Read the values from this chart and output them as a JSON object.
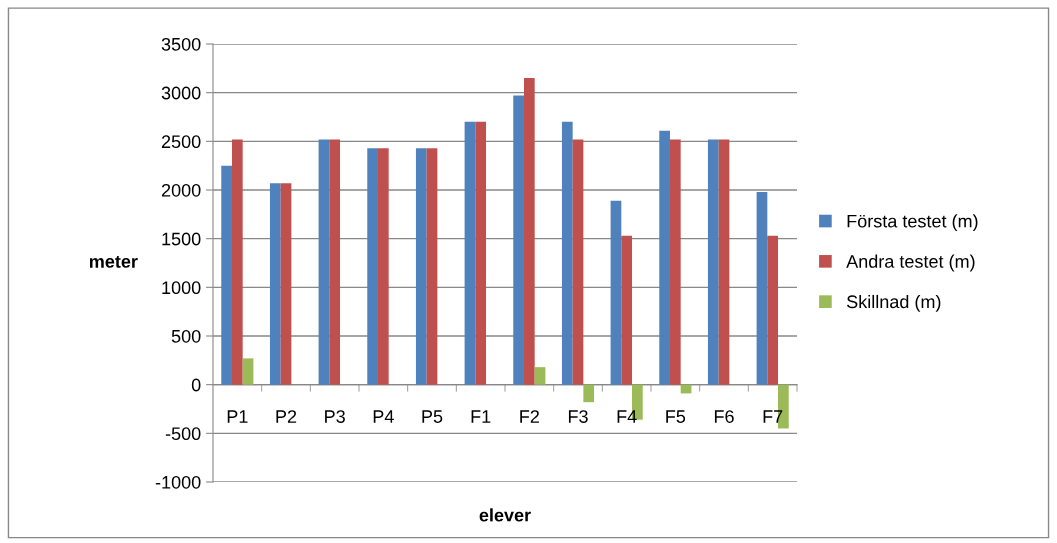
{
  "chart_data": {
    "type": "bar",
    "xlabel": "elever",
    "ylabel": "meter",
    "categories": [
      "P1",
      "P2",
      "P3",
      "P4",
      "P5",
      "F1",
      "F2",
      "F3",
      "F4",
      "F5",
      "F6",
      "F7"
    ],
    "series": [
      {
        "name": "Första testet (m)",
        "color": "#4f81bd",
        "values": [
          2250,
          2070,
          2520,
          2430,
          2430,
          2700,
          2970,
          2700,
          1890,
          2610,
          2520,
          1980
        ]
      },
      {
        "name": "Andra testet (m)",
        "color": "#c0504d",
        "values": [
          2520,
          2070,
          2520,
          2430,
          2430,
          2700,
          3150,
          2520,
          1530,
          2520,
          2520,
          1530
        ]
      },
      {
        "name": "Skillnad (m)",
        "color": "#9bbb59",
        "values": [
          270,
          0,
          0,
          0,
          0,
          0,
          180,
          -180,
          -360,
          -90,
          0,
          -450
        ]
      }
    ],
    "ylim": [
      -1000,
      3500
    ],
    "yticks": [
      -1000,
      -500,
      0,
      500,
      1000,
      1500,
      2000,
      2500,
      3000,
      3500
    ],
    "grid": "y",
    "legend": "right"
  }
}
